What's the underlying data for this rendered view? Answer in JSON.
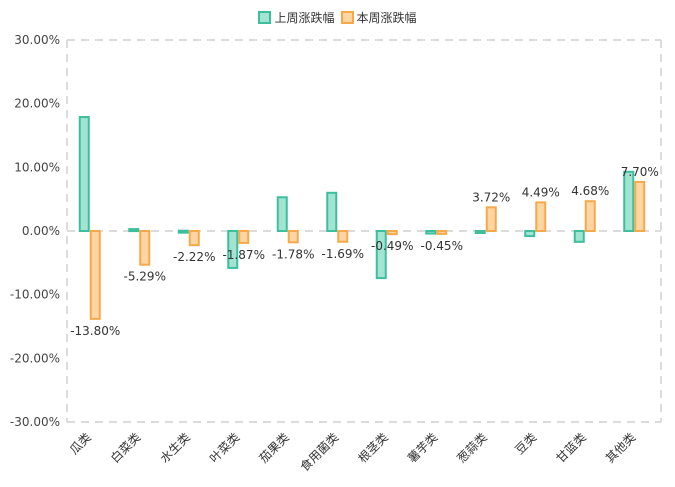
{
  "chart_data": {
    "type": "bar",
    "title": "",
    "xlabel": "",
    "ylabel": "",
    "legend_position": "top-center",
    "grid": true,
    "ylim": [
      -30,
      30
    ],
    "y_ticks": [
      30,
      20,
      10,
      0,
      -10,
      -20,
      -30
    ],
    "y_tick_labels": [
      "30.00%",
      "20.00%",
      "10.00%",
      "0.00%",
      "-10.00%",
      "-20.00%",
      "-30.00%"
    ],
    "categories": [
      "瓜类",
      "白菜类",
      "水生类",
      "叶菜类",
      "茄果类",
      "食用菌类",
      "根茎类",
      "薯芋类",
      "葱蒜类",
      "豆类",
      "甘蓝类",
      "其他类"
    ],
    "series": [
      {
        "name": "上周涨跌幅",
        "color": "#3dbf9e",
        "fill": "#a3e3d2",
        "values": [
          17.9,
          0.3,
          0.05,
          -5.8,
          5.3,
          6.0,
          -7.4,
          -0.4,
          -0.3,
          -0.8,
          -1.7,
          9.3
        ],
        "data_labels": []
      },
      {
        "name": "本周涨跌幅",
        "color": "#f5a94a",
        "fill": "#ffd5a3",
        "values": [
          -13.8,
          -5.29,
          -2.22,
          -1.87,
          -1.78,
          -1.69,
          -0.49,
          -0.45,
          3.72,
          4.49,
          4.68,
          7.7
        ],
        "data_labels": [
          "-13.80%",
          "-5.29%",
          "-2.22%",
          "-1.87%",
          "-1.78%",
          "-1.69%",
          "-0.49%",
          "-0.45%",
          "3.72%",
          "4.49%",
          "4.68%",
          "7.70%"
        ]
      }
    ]
  }
}
